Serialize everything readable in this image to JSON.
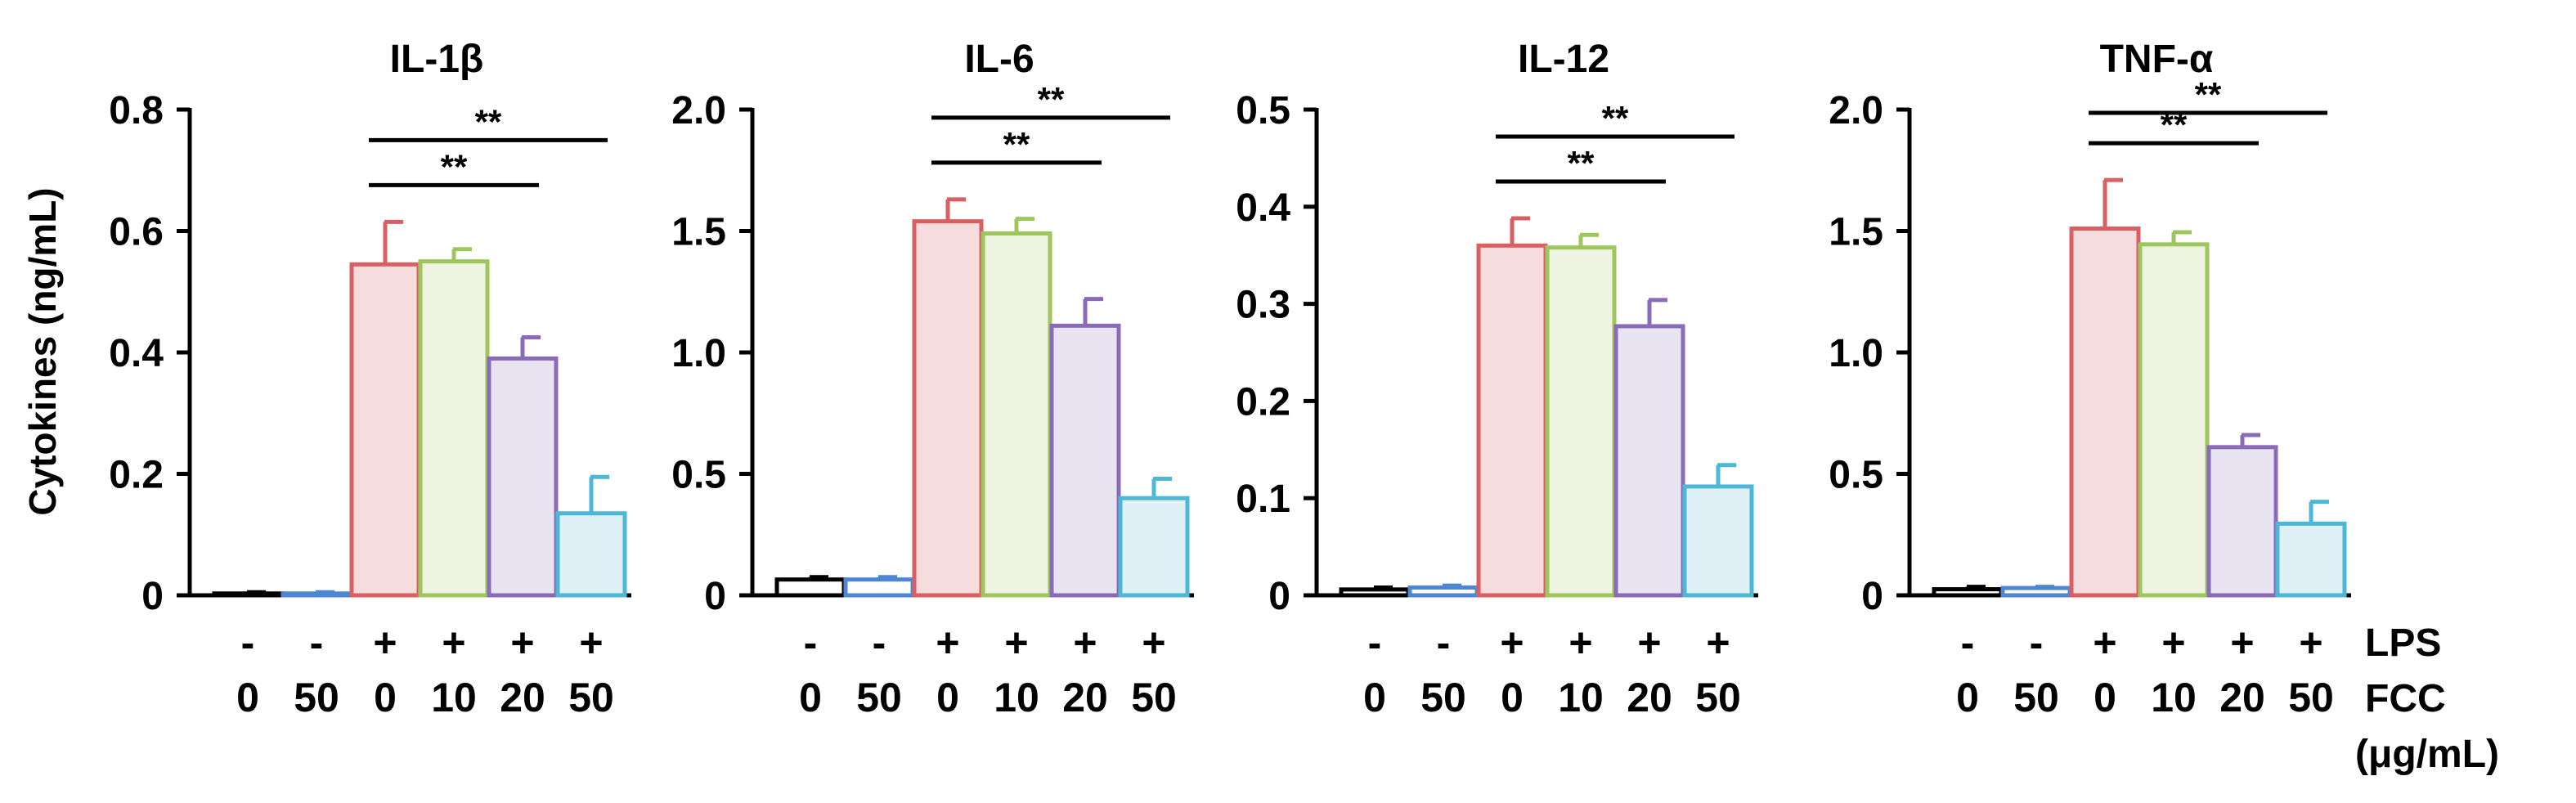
{
  "chart_data": [
    {
      "type": "bar",
      "title": "IL-1β",
      "ylabel": "Cytokines (ng/mL)",
      "ylim": [
        0,
        0.8
      ],
      "yticks": [
        "0",
        "0.2",
        "0.4",
        "0.6",
        "0.8"
      ],
      "tick_values": [
        0,
        0.2,
        0.4,
        0.6,
        0.8
      ],
      "categories": [
        "LPS- / FCC 0",
        "LPS- / FCC 50",
        "LPS+ / FCC 0",
        "LPS+ / FCC 10",
        "LPS+ / FCC 20",
        "LPS+ / FCC 50"
      ],
      "values": [
        0.003,
        0.003,
        0.545,
        0.55,
        0.39,
        0.135
      ],
      "errors": [
        0.002,
        0.002,
        0.07,
        0.02,
        0.035,
        0.06
      ],
      "significance": [
        {
          "from": 2,
          "to": 4,
          "label": "**"
        },
        {
          "from": 2,
          "to": 5,
          "label": "**"
        }
      ]
    },
    {
      "type": "bar",
      "title": "IL-6",
      "ylabel": "",
      "ylim": [
        0,
        2.0
      ],
      "yticks": [
        "0",
        "0.5",
        "1.0",
        "1.5",
        "2.0"
      ],
      "tick_values": [
        0,
        0.5,
        1.0,
        1.5,
        2.0
      ],
      "categories": [
        "LPS- / FCC 0",
        "LPS- / FCC 50",
        "LPS+ / FCC 0",
        "LPS+ / FCC 10",
        "LPS+ / FCC 20",
        "LPS+ / FCC 50"
      ],
      "values": [
        0.065,
        0.065,
        1.54,
        1.49,
        1.11,
        0.4
      ],
      "errors": [
        0.01,
        0.01,
        0.09,
        0.06,
        0.11,
        0.08
      ],
      "significance": [
        {
          "from": 2,
          "to": 4,
          "label": "**"
        },
        {
          "from": 2,
          "to": 5,
          "label": "**"
        }
      ]
    },
    {
      "type": "bar",
      "title": "IL-12",
      "ylabel": "",
      "ylim": [
        0,
        0.5
      ],
      "yticks": [
        "0",
        "0.1",
        "0.2",
        "0.3",
        "0.4",
        "0.5"
      ],
      "tick_values": [
        0,
        0.1,
        0.2,
        0.3,
        0.4,
        0.5
      ],
      "categories": [
        "LPS- / FCC 0",
        "LPS- / FCC 50",
        "LPS+ / FCC 0",
        "LPS+ / FCC 10",
        "LPS+ / FCC 20",
        "LPS+ / FCC 50"
      ],
      "values": [
        0.006,
        0.008,
        0.36,
        0.358,
        0.277,
        0.112
      ],
      "errors": [
        0.002,
        0.002,
        0.028,
        0.013,
        0.027,
        0.022
      ],
      "significance": [
        {
          "from": 2,
          "to": 4,
          "label": "**"
        },
        {
          "from": 2,
          "to": 5,
          "label": "**"
        }
      ]
    },
    {
      "type": "bar",
      "title": "TNF-α",
      "ylabel": "",
      "ylim": [
        0,
        2.0
      ],
      "yticks": [
        "0",
        "0.5",
        "1.0",
        "1.5",
        "2.0"
      ],
      "tick_values": [
        0,
        0.5,
        1.0,
        1.5,
        2.0
      ],
      "categories": [
        "LPS- / FCC 0",
        "LPS- / FCC 50",
        "LPS+ / FCC 0",
        "LPS+ / FCC 10",
        "LPS+ / FCC 20",
        "LPS+ / FCC 50"
      ],
      "values": [
        0.025,
        0.03,
        1.51,
        1.445,
        0.61,
        0.295
      ],
      "errors": [
        0.01,
        0.005,
        0.2,
        0.05,
        0.05,
        0.09
      ],
      "significance": [
        {
          "from": 2,
          "to": 4,
          "label": "**"
        },
        {
          "from": 2,
          "to": 5,
          "label": "**"
        }
      ]
    }
  ],
  "conditions": {
    "lps": [
      "-",
      "-",
      "+",
      "+",
      "+",
      "+"
    ],
    "fcc": [
      "0",
      "50",
      "0",
      "10",
      "20",
      "50"
    ],
    "lps_label": "LPS",
    "fcc_label": "FCC",
    "unit_label": "(μg/mL)"
  },
  "colors": {
    "stroke": [
      "#000000",
      "#4d86d3",
      "#d95f63",
      "#9dc75c",
      "#8a6bb8",
      "#4db7d8"
    ],
    "fill": [
      "#ffffff",
      "#ffffff",
      "#f6dcdc",
      "#eef3e2",
      "#e9e4f2",
      "#dff0f6"
    ]
  }
}
